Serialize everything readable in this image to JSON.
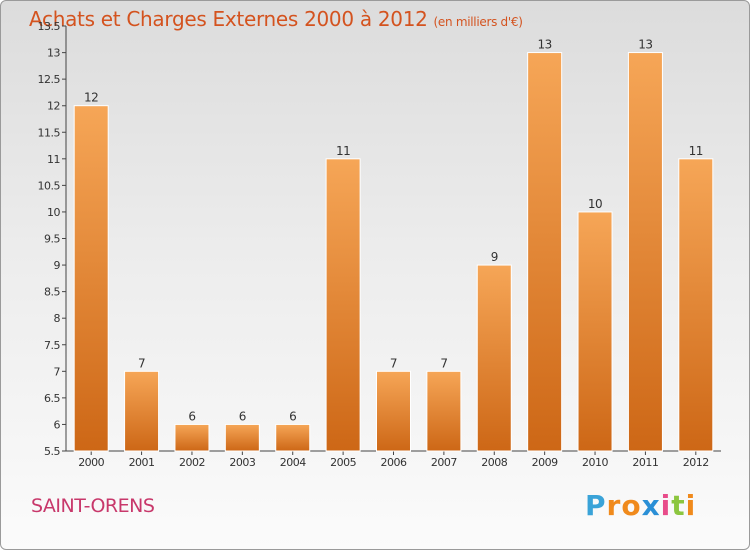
{
  "header": {
    "title": "Achats et Charges Externes 2000 à 2012",
    "subtitle": "(en milliers d'€)"
  },
  "footer": {
    "city": "SAINT-ORENS",
    "logo_letters": [
      "P",
      "r",
      "o",
      "x",
      "i",
      "t",
      "i"
    ],
    "logo_colors": [
      "#3aa3d8",
      "#f08a1c",
      "#f08a1c",
      "#2a8fd6",
      "#e84c8a",
      "#8cc63f",
      "#f08a1c"
    ]
  },
  "chart_data": {
    "type": "bar",
    "title": "Achats et Charges Externes 2000 à 2012",
    "categories": [
      "2000",
      "2001",
      "2002",
      "2003",
      "2004",
      "2005",
      "2006",
      "2007",
      "2008",
      "2009",
      "2010",
      "2011",
      "2012"
    ],
    "values": [
      12,
      7,
      6,
      6,
      6,
      11,
      7,
      7,
      9,
      13,
      10,
      13,
      11
    ],
    "ylim": [
      5.5,
      13.5
    ],
    "yticks": [
      "5.5",
      "6",
      "6.5",
      "7",
      "7.5",
      "8",
      "8.5",
      "9",
      "9.5",
      "10",
      "10.5",
      "11",
      "11.5",
      "12",
      "12.5",
      "13",
      "13.5"
    ],
    "grid": false,
    "colors": {
      "bar_light": "#f6a657",
      "bar_dark": "#cd6716"
    }
  }
}
